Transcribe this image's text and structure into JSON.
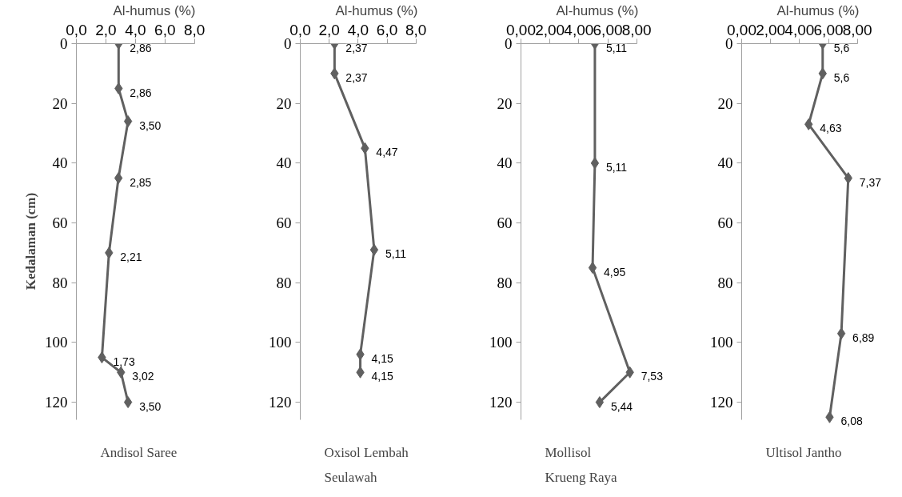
{
  "chart_data": [
    {
      "type": "line",
      "title": "Andisol Saree",
      "xlabel": "Al-humus (%)",
      "ylabel": "Kedalaman (cm)",
      "xlim": [
        0,
        8
      ],
      "xticks": [
        {
          "value": 0,
          "label": "0,0"
        },
        {
          "value": 2,
          "label": "2,0"
        },
        {
          "value": 4,
          "label": "4,0"
        },
        {
          "value": 6,
          "label": "6,0"
        },
        {
          "value": 8,
          "label": "8,0"
        }
      ],
      "ylim": [
        126,
        0
      ],
      "yticks": [
        0,
        20,
        40,
        60,
        80,
        100,
        120
      ],
      "marker": "diamond",
      "grid": false,
      "series": [
        {
          "color": "#606060",
          "x": [
            2.86,
            2.86,
            3.5,
            2.85,
            2.21,
            1.73,
            3.02,
            3.5
          ],
          "values": [
            0,
            15,
            26,
            45,
            70,
            105,
            110,
            120
          ]
        }
      ],
      "annotations": [
        {
          "text": "2,86",
          "x": 2.86,
          "y": 0
        },
        {
          "text": "2,86",
          "x": 2.86,
          "y": 15
        },
        {
          "text": "3,50",
          "x": 3.5,
          "y": 26
        },
        {
          "text": "2,85",
          "x": 2.85,
          "y": 45
        },
        {
          "text": "2,21",
          "x": 2.21,
          "y": 70
        },
        {
          "text": "1,73",
          "x": 1.73,
          "y": 105
        },
        {
          "text": "3,02",
          "x": 3.02,
          "y": 110
        },
        {
          "text": "3,50",
          "x": 3.5,
          "y": 120
        }
      ]
    },
    {
      "type": "line",
      "title": "Oxisol Lembah Seulawah",
      "xlabel": "Al-humus (%)",
      "xlim": [
        0,
        8
      ],
      "xticks": [
        {
          "value": 0,
          "label": "0,0"
        },
        {
          "value": 2,
          "label": "2,0"
        },
        {
          "value": 4,
          "label": "4,0"
        },
        {
          "value": 6,
          "label": "6,0"
        },
        {
          "value": 8,
          "label": "8,0"
        }
      ],
      "ylim": [
        126,
        0
      ],
      "yticks": [
        0,
        20,
        40,
        60,
        80,
        100,
        120
      ],
      "marker": "diamond",
      "grid": false,
      "series": [
        {
          "color": "#606060",
          "x": [
            2.37,
            2.37,
            4.47,
            5.11,
            4.15,
            4.15
          ],
          "values": [
            0,
            10,
            35,
            69,
            104,
            110
          ]
        }
      ],
      "annotations": [
        {
          "text": "2,37",
          "x": 2.37,
          "y": 0
        },
        {
          "text": "2,37",
          "x": 2.37,
          "y": 10
        },
        {
          "text": "4,47",
          "x": 4.47,
          "y": 35
        },
        {
          "text": "5,11",
          "x": 5.11,
          "y": 69
        },
        {
          "text": "4,15",
          "x": 4.15,
          "y": 104
        },
        {
          "text": "4,15",
          "x": 4.15,
          "y": 110
        }
      ]
    },
    {
      "type": "line",
      "title": "Mollisol Krueng Raya",
      "xlabel": "Al-humus (%)",
      "xlim": [
        0,
        8
      ],
      "xticks": [
        {
          "value": 0,
          "label": "0,00"
        },
        {
          "value": 2,
          "label": "2,00"
        },
        {
          "value": 4,
          "label": "4,00"
        },
        {
          "value": 6,
          "label": "6,00"
        },
        {
          "value": 8,
          "label": "8,00"
        }
      ],
      "ylim": [
        126,
        0
      ],
      "yticks": [
        0,
        20,
        40,
        60,
        80,
        100,
        120
      ],
      "marker": "diamond",
      "grid": false,
      "series": [
        {
          "color": "#606060",
          "x": [
            5.11,
            5.11,
            4.95,
            7.53,
            5.44
          ],
          "values": [
            0,
            40,
            75,
            110,
            120
          ]
        }
      ],
      "annotations": [
        {
          "text": "5,11",
          "x": 5.11,
          "y": 0
        },
        {
          "text": "5,11",
          "x": 5.11,
          "y": 40
        },
        {
          "text": "4,95",
          "x": 4.95,
          "y": 75
        },
        {
          "text": "7,53",
          "x": 7.53,
          "y": 110
        },
        {
          "text": "5,44",
          "x": 5.44,
          "y": 120
        }
      ]
    },
    {
      "type": "line",
      "title": "Ultisol Jantho",
      "xlabel": "Al-humus (%)",
      "xlim": [
        0,
        8
      ],
      "xticks": [
        {
          "value": 0,
          "label": "0,00"
        },
        {
          "value": 2,
          "label": "2,00"
        },
        {
          "value": 4,
          "label": "4,00"
        },
        {
          "value": 6,
          "label": "6,00"
        },
        {
          "value": 8,
          "label": "8,00"
        }
      ],
      "ylim": [
        126,
        0
      ],
      "yticks": [
        0,
        20,
        40,
        60,
        80,
        100,
        120
      ],
      "marker": "diamond",
      "grid": false,
      "series": [
        {
          "color": "#606060",
          "x": [
            5.6,
            5.6,
            4.63,
            7.37,
            6.89,
            6.08
          ],
          "values": [
            0,
            10,
            27,
            45,
            97,
            125
          ]
        }
      ],
      "annotations": [
        {
          "text": "5,6",
          "x": 5.6,
          "y": 0
        },
        {
          "text": "5,6",
          "x": 5.6,
          "y": 10
        },
        {
          "text": "4,63",
          "x": 4.63,
          "y": 27
        },
        {
          "text": "7,37",
          "x": 7.37,
          "y": 45
        },
        {
          "text": "6,89",
          "x": 6.89,
          "y": 97
        },
        {
          "text": "6,08",
          "x": 6.08,
          "y": 125
        }
      ]
    }
  ]
}
